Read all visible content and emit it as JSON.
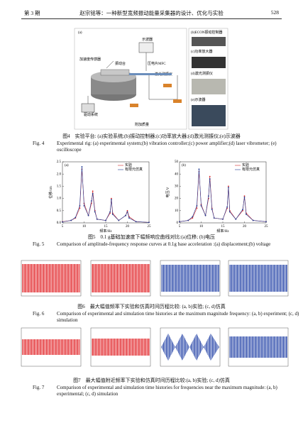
{
  "header": {
    "issue": "第 3 期",
    "title": "赵宗铭等：一种新型宽频振动能量采集器的设计、优化与实验",
    "page": "528"
  },
  "figure4": {
    "labels": {
      "a": "(a)",
      "oscilloscope": "示波器",
      "accelerometer": "加速度传感器",
      "shaker": "振动台",
      "mfc": "压电片MFC",
      "vibrometer": "激光测振仪",
      "drive": "驱动系统",
      "mass": "附加质量"
    },
    "photos": [
      "(b)ECON振动控制器",
      "(c)功率放大器",
      "(d)激光测振仪",
      "(e)示波器"
    ],
    "caption_cn": "图4　实验平台: (a)实验系统;(b)振动控制器;(c)功率放大器;(d)激光测振仪;(e)示波器",
    "caption_en_label": "Fig. 4",
    "caption_en": "Experimental rig: (a) experimental system;(b) vibration controller;(c) power amplifier;(d) laser vibrometer; (e) oscilloscope"
  },
  "figure5": {
    "panels": [
      {
        "type": "line",
        "label": "(a)",
        "xlabel": "频率/Hz",
        "ylabel": "位移/cm",
        "x": [
          5,
          7,
          8,
          9,
          9.5,
          10,
          11,
          11.7,
          12,
          12.5,
          13,
          15,
          16,
          16.3,
          16.6,
          18,
          19.6,
          20,
          20.4,
          22,
          25
        ],
        "series": [
          {
            "name": "实验",
            "color": "#d62728",
            "values": [
              0.05,
              0.1,
              0.2,
              0.6,
              2.2,
              0.8,
              0.3,
              0.8,
              1.3,
              0.5,
              0.15,
              0.1,
              0.4,
              1.0,
              0.4,
              0.1,
              0.3,
              0.5,
              0.25,
              0.05,
              0.02
            ]
          },
          {
            "name": "有限元仿真",
            "color": "#1f3a93",
            "values": [
              0.04,
              0.1,
              0.22,
              0.7,
              2.3,
              0.7,
              0.3,
              0.9,
              1.2,
              0.45,
              0.15,
              0.1,
              0.45,
              0.95,
              0.35,
              0.1,
              0.3,
              0.45,
              0.2,
              0.05,
              0.02
            ]
          }
        ],
        "xlim": [
          5,
          25
        ],
        "xticks": [
          5,
          10,
          15,
          20,
          25
        ],
        "ylim": [
          0,
          2.5
        ],
        "yticks": [
          {
            "value": 0,
            "label": "0.0"
          },
          {
            "value": 0.5,
            "label": "0.5"
          },
          {
            "value": 1,
            "label": "1.0"
          },
          {
            "value": 1.5,
            "label": "1.5"
          },
          {
            "value": 2,
            "label": "2.0"
          },
          {
            "value": 2.5,
            "label": "2.5"
          }
        ]
      },
      {
        "type": "line",
        "label": "(b)",
        "xlabel": "频率/Hz",
        "ylabel": "电压/V",
        "x": [
          5,
          7,
          8,
          9,
          9.5,
          10,
          11,
          11.7,
          12,
          12.5,
          13,
          15,
          16,
          16.3,
          16.6,
          18,
          19.6,
          20,
          20.4,
          22,
          25
        ],
        "series": [
          {
            "name": "实验",
            "color": "#d62728",
            "values": [
              1,
              2,
              4,
              12,
              42,
              15,
              6,
              20,
              38,
              12,
              4,
              3,
              12,
              30,
              10,
              3,
              10,
              22,
              8,
              2,
              1
            ]
          },
          {
            "name": "有限元仿真",
            "color": "#1f3a93",
            "values": [
              1,
              2,
              5,
              14,
              44,
              14,
              6,
              22,
              36,
              11,
              4,
              3,
              13,
              29,
              9,
              3,
              11,
              21,
              7,
              2,
              1
            ]
          }
        ],
        "xlim": [
          5,
          25
        ],
        "xticks": [
          5,
          10,
          15,
          20,
          25
        ],
        "ylim": [
          0,
          50
        ],
        "yticks": [
          0,
          10,
          20,
          30,
          40,
          50
        ]
      }
    ],
    "caption_cn": "图5　0.1 g基础加速度下幅频响应曲线对比:(a)位移; (b)电压",
    "caption_en_label": "Fig. 5",
    "caption_en": "Comparison of amplitude-frequency response curves at 0.1g base acceleration :(a) displacement;(b) voltage"
  },
  "figure6": {
    "caption_cn": "图6　最大幅值频率下实验和仿真时间历程比较: (a, b)实验; (c, d)仿真",
    "caption_en_label": "Fig. 6",
    "caption_en": "Comparison of experimental and simulation time histories at the maximum magnitude frequency: (a, b) experiment; (c, d) simulation"
  },
  "figure7": {
    "caption_cn": "图7　最大幅值附近频率下实验和仿真时间历程比较:(a, b)实验; (c, d)仿真",
    "caption_en_label": "Fig. 7",
    "caption_en": "Comparison of experimental and simulation time histories for frequencies near the maximum magnitude: (a, b) experimental; (c, d) simulation"
  }
}
